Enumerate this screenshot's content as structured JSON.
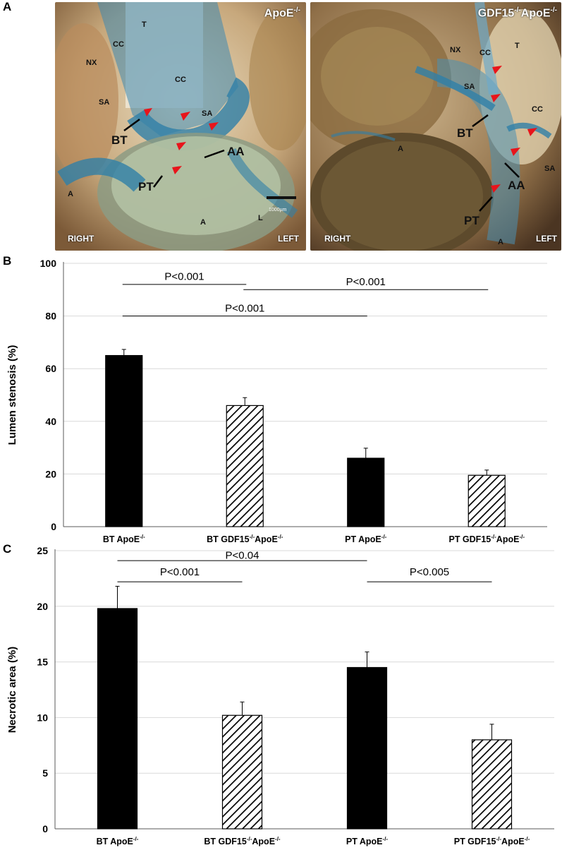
{
  "panels": {
    "a": "A",
    "b": "B",
    "c": "C"
  },
  "photos": [
    {
      "title": "ApoE",
      "title_sup": "-/-",
      "right": "RIGHT",
      "left": "LEFT",
      "scale_bar": "1000µm",
      "labels": [
        "T",
        "CC",
        "NX",
        "CC",
        "SA",
        "SA",
        "BT",
        "AA",
        "PT",
        "A",
        "A",
        "L"
      ]
    },
    {
      "title": "GDF15",
      "title_sup1": "-/-",
      "title_mid": "ApoE",
      "title_sup2": "-/-",
      "right": "RIGHT",
      "left": "LEFT",
      "labels": [
        "NX",
        "CC",
        "T",
        "SA",
        "CC",
        "BT",
        "A",
        "AA",
        "SA",
        "PT",
        "A"
      ]
    }
  ],
  "colors": {
    "bar_solid": "#000000",
    "hatch": "#000000",
    "grid": "#d9d9d9",
    "dye_blue": "#2f7fa8",
    "arrow_red": "#e8141b"
  },
  "chart_data": [
    {
      "type": "bar",
      "panel": "B",
      "ylabel": "Lumen stenosis (%)",
      "ylim": [
        0,
        100
      ],
      "yticks": [
        "0",
        "20",
        "40",
        "60",
        "80",
        "100"
      ],
      "categories": [
        {
          "a": "BT ApoE",
          "b": "-/-",
          "c": "",
          "d": ""
        },
        {
          "a": "BT GDF15",
          "b": "-/-",
          "c": "ApoE",
          "d": "-/-"
        },
        {
          "a": "PT ApoE",
          "b": "-/-",
          "c": "",
          "d": ""
        },
        {
          "a": "PT GDF15",
          "b": "-/-",
          "c": "ApoE",
          "d": "-/-"
        }
      ],
      "values": [
        65,
        46,
        26,
        19.5
      ],
      "errors": [
        2.3,
        3.0,
        3.8,
        2.0
      ],
      "patterns": [
        "solid",
        "hatch",
        "solid",
        "hatch"
      ],
      "grid": true,
      "comparisons": [
        {
          "from": 0,
          "to": 1,
          "y": 92,
          "label": "P<0.001",
          "label_y": 95
        },
        {
          "from": 0,
          "to": 2,
          "y": 80,
          "label": "P<0.001",
          "label_y": 83
        },
        {
          "from": 1,
          "to": 3,
          "y": 90,
          "label": "P<0.001",
          "label_y": 93
        }
      ]
    },
    {
      "type": "bar",
      "panel": "C",
      "ylabel": "Necrotic area (%)",
      "ylim": [
        0,
        25
      ],
      "yticks": [
        "0",
        "5",
        "10",
        "15",
        "20",
        "25"
      ],
      "categories": [
        {
          "a": "BT ApoE",
          "b": "-/-",
          "c": "",
          "d": ""
        },
        {
          "a": "BT GDF15",
          "b": "-/-",
          "c": "ApoE",
          "d": "-/-"
        },
        {
          "a": "PT ApoE",
          "b": "-/-",
          "c": "",
          "d": ""
        },
        {
          "a": "PT GDF15",
          "b": "-/-",
          "c": "ApoE",
          "d": "-/-"
        }
      ],
      "values": [
        19.8,
        10.2,
        14.5,
        8.0
      ],
      "errors": [
        2.0,
        1.2,
        1.4,
        1.4
      ],
      "patterns": [
        "solid",
        "hatch",
        "solid",
        "hatch"
      ],
      "grid": true,
      "comparisons": [
        {
          "from": 0,
          "to": 2,
          "y": 24.1,
          "label": "P<0.04",
          "label_y": 24.6
        },
        {
          "from": 0,
          "to": 1,
          "y": 22.2,
          "label": "P<0.001",
          "label_y": 23.1
        },
        {
          "from": 2,
          "to": 3,
          "y": 22.2,
          "label": "P<0.005",
          "label_y": 23.1
        }
      ]
    }
  ]
}
